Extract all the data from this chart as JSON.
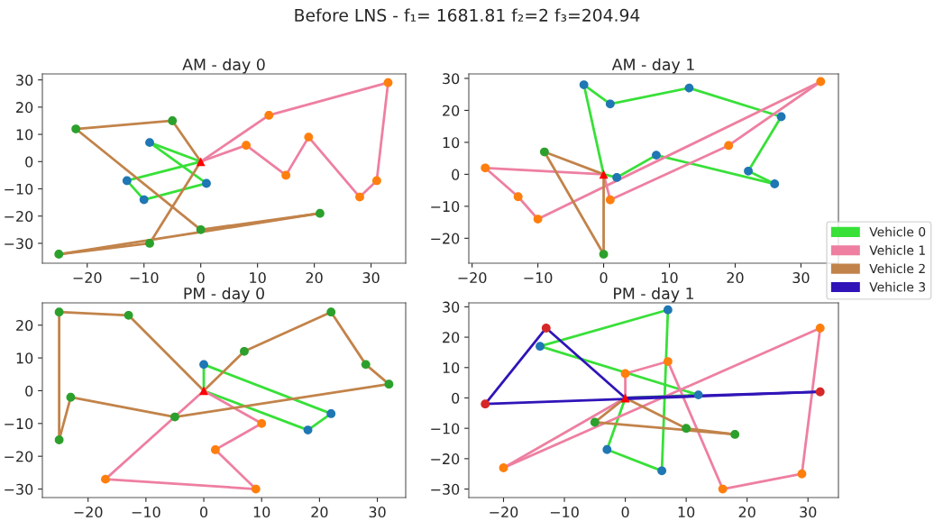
{
  "chart_data": [
    {
      "type": "line",
      "title": "AM - day 0",
      "annotations": [
        "Before LNS - f₁= 1681.81 f₂=2 f₃=204.94"
      ],
      "xlim": [
        -27.9,
        36.1
      ],
      "ylim": [
        -37.3,
        32.2
      ],
      "xticks": [
        -20,
        -10,
        0,
        10,
        20,
        30
      ],
      "yticks": [
        -30,
        -20,
        -10,
        0,
        10,
        20,
        30
      ],
      "series": [
        {
          "color": "#38e038",
          "x": [
            0,
            -9
          ],
          "values": [
            0,
            7
          ]
        },
        {
          "color": "#38e038",
          "x": [
            -9,
            1
          ],
          "values": [
            7,
            -8
          ]
        },
        {
          "color": "#38e038",
          "x": [
            1,
            -10,
            -13
          ],
          "values": [
            -8,
            -14,
            -7
          ]
        },
        {
          "color": "#38e038",
          "x": [
            -13,
            0
          ],
          "values": [
            -7,
            0
          ]
        },
        {
          "color": "#ee7fa1",
          "x": [
            0,
            12,
            33
          ],
          "values": [
            0,
            17,
            29
          ]
        },
        {
          "color": "#ee7fa1",
          "x": [
            33,
            31,
            28,
            19,
            15,
            8,
            0
          ],
          "values": [
            29,
            -7,
            -13,
            9,
            -5,
            6,
            0
          ]
        },
        {
          "color": "#c2834a",
          "x": [
            0,
            -5,
            -22
          ],
          "values": [
            0,
            15,
            12
          ]
        },
        {
          "color": "#c2834a",
          "x": [
            -22,
            0,
            21
          ],
          "values": [
            12,
            -25,
            -19
          ]
        },
        {
          "color": "#c2834a",
          "x": [
            21,
            -25
          ],
          "values": [
            -19,
            -34
          ]
        },
        {
          "color": "#c2834a",
          "x": [
            -25,
            -9,
            0
          ],
          "values": [
            -34,
            -30,
            0
          ]
        },
        {
          "type": "scatter",
          "marker": "circle",
          "color": "#1f77b4",
          "x": [
            -9,
            1,
            -10,
            -13
          ],
          "values": [
            7,
            -8,
            -14,
            -7
          ]
        },
        {
          "type": "scatter",
          "marker": "circle",
          "color": "#ff7f0e",
          "x": [
            12,
            33,
            31,
            28,
            19,
            15,
            8
          ],
          "values": [
            17,
            29,
            -7,
            -13,
            9,
            -5,
            6
          ]
        },
        {
          "type": "scatter",
          "marker": "circle",
          "color": "#2ca02c",
          "x": [
            -5,
            -22,
            0,
            21,
            -25,
            -9
          ],
          "values": [
            15,
            12,
            -25,
            -19,
            -34,
            -30
          ]
        },
        {
          "type": "scatter",
          "marker": "triangle",
          "color": "#ff0000",
          "x": [
            0
          ],
          "values": [
            0
          ]
        }
      ]
    },
    {
      "type": "line",
      "title": "AM - day 1",
      "xlim": [
        -20.5,
        35.7
      ],
      "ylim": [
        -27.8,
        31.4
      ],
      "xticks": [
        -20,
        -10,
        0,
        10,
        20,
        30
      ],
      "yticks": [
        -20,
        -10,
        0,
        10,
        20,
        30
      ],
      "series": [
        {
          "color": "#38e038",
          "x": [
            0,
            -3
          ],
          "values": [
            0,
            28
          ]
        },
        {
          "color": "#38e038",
          "x": [
            -3,
            1,
            13,
            27
          ],
          "values": [
            28,
            22,
            27,
            18
          ]
        },
        {
          "color": "#38e038",
          "x": [
            27,
            22
          ],
          "values": [
            18,
            1
          ]
        },
        {
          "color": "#38e038",
          "x": [
            22,
            26
          ],
          "values": [
            1,
            -3
          ]
        },
        {
          "color": "#38e038",
          "x": [
            26,
            8,
            2,
            0
          ],
          "values": [
            -3,
            6,
            -1,
            0
          ]
        },
        {
          "color": "#ee7fa1",
          "x": [
            0,
            -18
          ],
          "values": [
            0,
            2
          ]
        },
        {
          "color": "#ee7fa1",
          "x": [
            -18,
            -13,
            -10,
            33
          ],
          "values": [
            2,
            -7,
            -14,
            29
          ]
        },
        {
          "color": "#ee7fa1",
          "x": [
            33,
            19,
            1,
            0
          ],
          "values": [
            29,
            9,
            -8,
            0
          ]
        },
        {
          "color": "#c2834a",
          "x": [
            0,
            -9
          ],
          "values": [
            0,
            7
          ]
        },
        {
          "color": "#c2834a",
          "x": [
            -9,
            0
          ],
          "values": [
            7,
            -25
          ]
        },
        {
          "color": "#c2834a",
          "x": [
            0,
            0
          ],
          "values": [
            -25,
            0
          ]
        },
        {
          "type": "scatter",
          "marker": "circle",
          "color": "#1f77b4",
          "x": [
            -3,
            1,
            13,
            27,
            22,
            26,
            8,
            2
          ],
          "values": [
            28,
            22,
            27,
            18,
            1,
            -3,
            6,
            -1
          ]
        },
        {
          "type": "scatter",
          "marker": "circle",
          "color": "#ff7f0e",
          "x": [
            -18,
            -13,
            -10,
            33,
            19,
            1
          ],
          "values": [
            2,
            -7,
            -14,
            29,
            9,
            -8
          ]
        },
        {
          "type": "scatter",
          "marker": "circle",
          "color": "#2ca02c",
          "x": [
            -9,
            0
          ],
          "values": [
            7,
            -25
          ]
        },
        {
          "type": "scatter",
          "marker": "triangle",
          "color": "#ff0000",
          "x": [
            0
          ],
          "values": [
            0
          ]
        }
      ]
    },
    {
      "type": "line",
      "title": "PM - day 0",
      "xlim": [
        -27.9,
        34.9
      ],
      "ylim": [
        -32.6,
        26.8
      ],
      "xticks": [
        -20,
        -10,
        0,
        10,
        20,
        30
      ],
      "yticks": [
        -30,
        -20,
        -10,
        0,
        10,
        20
      ],
      "series": [
        {
          "color": "#38e038",
          "x": [
            0,
            0
          ],
          "values": [
            0,
            8
          ]
        },
        {
          "color": "#38e038",
          "x": [
            0,
            22
          ],
          "values": [
            8,
            -7
          ]
        },
        {
          "color": "#38e038",
          "x": [
            22,
            18,
            0
          ],
          "values": [
            -7,
            -12,
            0
          ]
        },
        {
          "color": "#ee7fa1",
          "x": [
            0,
            10
          ],
          "values": [
            0,
            -10
          ]
        },
        {
          "color": "#ee7fa1",
          "x": [
            10,
            2
          ],
          "values": [
            -10,
            -18
          ]
        },
        {
          "color": "#ee7fa1",
          "x": [
            2,
            9
          ],
          "values": [
            -18,
            -30
          ]
        },
        {
          "color": "#ee7fa1",
          "x": [
            9,
            -17
          ],
          "values": [
            -30,
            -27
          ]
        },
        {
          "color": "#ee7fa1",
          "x": [
            -17,
            0
          ],
          "values": [
            -27,
            0
          ]
        },
        {
          "color": "#c2834a",
          "x": [
            0,
            -13,
            -25
          ],
          "values": [
            0,
            23,
            24
          ]
        },
        {
          "color": "#c2834a",
          "x": [
            -25,
            -25
          ],
          "values": [
            24,
            -15
          ]
        },
        {
          "color": "#c2834a",
          "x": [
            -25,
            -23,
            -5,
            32
          ],
          "values": [
            -15,
            -2,
            -8,
            2
          ]
        },
        {
          "color": "#c2834a",
          "x": [
            32,
            28,
            22,
            7,
            0
          ],
          "values": [
            2,
            8,
            24,
            12,
            0
          ]
        },
        {
          "type": "scatter",
          "marker": "circle",
          "color": "#1f77b4",
          "x": [
            0,
            22,
            18
          ],
          "values": [
            8,
            -7,
            -12
          ]
        },
        {
          "type": "scatter",
          "marker": "circle",
          "color": "#ff7f0e",
          "x": [
            10,
            2,
            9,
            -17
          ],
          "values": [
            -10,
            -18,
            -30,
            -27
          ]
        },
        {
          "type": "scatter",
          "marker": "circle",
          "color": "#2ca02c",
          "x": [
            -13,
            -25,
            -25,
            -23,
            -5,
            32,
            28,
            22,
            7
          ],
          "values": [
            23,
            24,
            -15,
            -2,
            -8,
            2,
            8,
            24,
            12
          ]
        },
        {
          "type": "scatter",
          "marker": "triangle",
          "color": "#ff0000",
          "x": [
            0
          ],
          "values": [
            0
          ]
        }
      ]
    },
    {
      "type": "line",
      "title": "PM - day 1",
      "legend": "right",
      "xlim": [
        -25.7,
        35.0
      ],
      "ylim": [
        -32.8,
        31.3
      ],
      "xticks": [
        -20,
        -10,
        0,
        10,
        20,
        30
      ],
      "yticks": [
        -30,
        -20,
        -10,
        0,
        10,
        20,
        30
      ],
      "series": [
        {
          "name": "Vehicle 0",
          "color": "#38e038",
          "x": [
            0,
            -3
          ],
          "values": [
            0,
            -17
          ]
        },
        {
          "color": "#38e038",
          "x": [
            -3,
            6,
            7
          ],
          "values": [
            -17,
            -24,
            29
          ]
        },
        {
          "color": "#38e038",
          "x": [
            7,
            -14
          ],
          "values": [
            29,
            17
          ]
        },
        {
          "color": "#38e038",
          "x": [
            -14,
            12
          ],
          "values": [
            17,
            1
          ]
        },
        {
          "color": "#38e038",
          "x": [
            12,
            0
          ],
          "values": [
            1,
            0
          ]
        },
        {
          "name": "Vehicle 1",
          "color": "#ee7fa1",
          "x": [
            0,
            0
          ],
          "values": [
            0,
            8
          ]
        },
        {
          "color": "#ee7fa1",
          "x": [
            0,
            7,
            16,
            29,
            32
          ],
          "values": [
            8,
            12,
            -30,
            -25,
            23
          ]
        },
        {
          "color": "#ee7fa1",
          "x": [
            32,
            -20
          ],
          "values": [
            23,
            -23
          ]
        },
        {
          "color": "#ee7fa1",
          "x": [
            -20,
            0
          ],
          "values": [
            -23,
            0
          ]
        },
        {
          "name": "Vehicle 2",
          "color": "#c2834a",
          "x": [
            0,
            -5
          ],
          "values": [
            0,
            -8
          ]
        },
        {
          "color": "#c2834a",
          "x": [
            -5,
            18
          ],
          "values": [
            -8,
            -12
          ]
        },
        {
          "color": "#c2834a",
          "x": [
            18,
            10,
            0
          ],
          "values": [
            -12,
            -10,
            0
          ]
        },
        {
          "name": "Vehicle 3",
          "color": "#3014b8",
          "x": [
            0,
            -13,
            -23
          ],
          "values": [
            0,
            23,
            -2
          ]
        },
        {
          "color": "#3014b8",
          "x": [
            -23,
            32
          ],
          "values": [
            -2,
            2
          ]
        },
        {
          "color": "#3014b8",
          "x": [
            32,
            0
          ],
          "values": [
            2,
            0
          ]
        },
        {
          "type": "scatter",
          "marker": "circle",
          "color": "#1f77b4",
          "x": [
            -3,
            6,
            7,
            -14,
            12
          ],
          "values": [
            -17,
            -24,
            29,
            17,
            1
          ]
        },
        {
          "type": "scatter",
          "marker": "circle",
          "color": "#ff7f0e",
          "x": [
            0,
            7,
            16,
            29,
            32,
            -20
          ],
          "values": [
            8,
            12,
            -30,
            -25,
            23,
            -23
          ]
        },
        {
          "type": "scatter",
          "marker": "circle",
          "color": "#2ca02c",
          "x": [
            -5,
            18,
            10
          ],
          "values": [
            -8,
            -12,
            -10
          ]
        },
        {
          "type": "scatter",
          "marker": "circle",
          "color": "#d62728",
          "x": [
            -13,
            -23,
            32
          ],
          "values": [
            23,
            -2,
            2
          ]
        },
        {
          "type": "scatter",
          "marker": "triangle",
          "color": "#ff0000",
          "x": [
            0
          ],
          "values": [
            0
          ]
        }
      ]
    }
  ]
}
